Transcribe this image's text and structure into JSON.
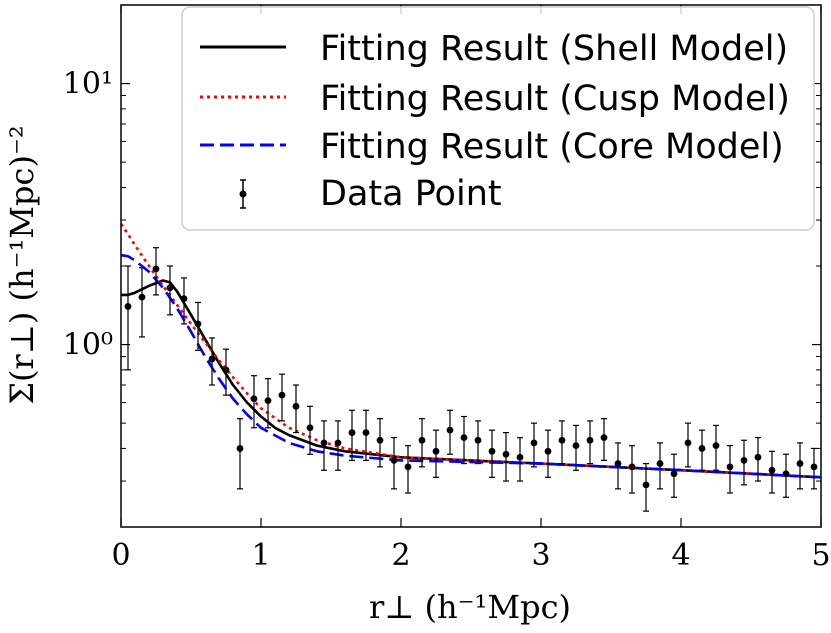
{
  "chart_data": {
    "type": "line",
    "xlabel": "r⊥ (h⁻¹Mpc)",
    "ylabel": "Σ(r⊥) (h⁻¹Mpc)⁻²",
    "xlim": [
      0,
      5
    ],
    "ylim": [
      0.2,
      20
    ],
    "yscale": "log",
    "x_ticks": [
      0,
      1,
      2,
      3,
      4,
      5
    ],
    "x_tick_labels": [
      "0",
      "1",
      "2",
      "3",
      "4",
      "5"
    ],
    "y_ticks": [
      1,
      10
    ],
    "y_tick_labels": [
      "10⁰",
      "10¹"
    ],
    "legend_position": "top-right",
    "series": [
      {
        "name": "Fitting Result (Shell Model)",
        "style": "solid",
        "color": "#000000",
        "x": [
          0.0,
          0.05,
          0.1,
          0.2,
          0.3,
          0.35,
          0.4,
          0.5,
          0.6,
          0.7,
          0.8,
          0.9,
          1.0,
          1.1,
          1.2,
          1.4,
          1.6,
          2.0,
          3.0,
          4.0,
          5.0
        ],
        "y": [
          1.55,
          1.55,
          1.58,
          1.68,
          1.76,
          1.73,
          1.6,
          1.3,
          1.05,
          0.85,
          0.7,
          0.6,
          0.53,
          0.48,
          0.45,
          0.41,
          0.39,
          0.37,
          0.35,
          0.33,
          0.31
        ]
      },
      {
        "name": "Fitting Result (Cusp Model)",
        "style": "dotted",
        "color": "#ff0000",
        "x": [
          0.0,
          0.05,
          0.1,
          0.2,
          0.3,
          0.4,
          0.5,
          0.6,
          0.7,
          0.8,
          0.9,
          1.0,
          1.2,
          1.4,
          1.6,
          2.0,
          3.0,
          4.0,
          5.0
        ],
        "y": [
          2.9,
          2.65,
          2.4,
          2.0,
          1.68,
          1.42,
          1.2,
          1.02,
          0.87,
          0.75,
          0.65,
          0.57,
          0.48,
          0.43,
          0.4,
          0.37,
          0.35,
          0.33,
          0.31
        ]
      },
      {
        "name": "Fitting Result (Core Model)",
        "style": "dashed",
        "color": "#0000ff",
        "x": [
          0.0,
          0.05,
          0.1,
          0.2,
          0.3,
          0.4,
          0.5,
          0.6,
          0.7,
          0.8,
          0.9,
          1.0,
          1.2,
          1.4,
          1.6,
          2.0,
          3.0,
          4.0,
          5.0
        ],
        "y": [
          2.2,
          2.18,
          2.1,
          1.9,
          1.65,
          1.38,
          1.12,
          0.9,
          0.74,
          0.62,
          0.54,
          0.48,
          0.42,
          0.39,
          0.375,
          0.36,
          0.35,
          0.33,
          0.31
        ]
      },
      {
        "name": "Data Point",
        "style": "errorbar",
        "color": "#000000",
        "x": [
          0.05,
          0.15,
          0.25,
          0.35,
          0.45,
          0.55,
          0.65,
          0.75,
          0.85,
          0.95,
          1.05,
          1.15,
          1.25,
          1.35,
          1.45,
          1.55,
          1.65,
          1.75,
          1.85,
          1.95,
          2.05,
          2.15,
          2.25,
          2.35,
          2.45,
          2.55,
          2.65,
          2.75,
          2.85,
          2.95,
          3.05,
          3.15,
          3.25,
          3.35,
          3.45,
          3.55,
          3.65,
          3.75,
          3.85,
          3.95,
          4.05,
          4.15,
          4.25,
          4.35,
          4.45,
          4.55,
          4.65,
          4.75,
          4.85,
          4.95
        ],
        "y": [
          1.4,
          1.52,
          1.95,
          1.65,
          1.5,
          1.2,
          0.88,
          0.8,
          0.4,
          0.62,
          0.61,
          0.64,
          0.58,
          0.48,
          0.42,
          0.42,
          0.46,
          0.46,
          0.43,
          0.36,
          0.34,
          0.43,
          0.39,
          0.47,
          0.44,
          0.43,
          0.39,
          0.38,
          0.37,
          0.42,
          0.39,
          0.43,
          0.41,
          0.43,
          0.44,
          0.35,
          0.34,
          0.29,
          0.35,
          0.32,
          0.42,
          0.4,
          0.41,
          0.34,
          0.36,
          0.37,
          0.33,
          0.32,
          0.35,
          0.34
        ],
        "yerr": [
          0.6,
          0.45,
          0.4,
          0.35,
          0.3,
          0.25,
          0.18,
          0.16,
          0.12,
          0.14,
          0.13,
          0.13,
          0.12,
          0.1,
          0.09,
          0.09,
          0.1,
          0.1,
          0.09,
          0.08,
          0.07,
          0.09,
          0.08,
          0.09,
          0.09,
          0.08,
          0.08,
          0.08,
          0.07,
          0.08,
          0.08,
          0.08,
          0.08,
          0.08,
          0.08,
          0.07,
          0.07,
          0.06,
          0.07,
          0.06,
          0.08,
          0.07,
          0.08,
          0.07,
          0.07,
          0.07,
          0.06,
          0.06,
          0.07,
          0.06
        ]
      }
    ]
  }
}
